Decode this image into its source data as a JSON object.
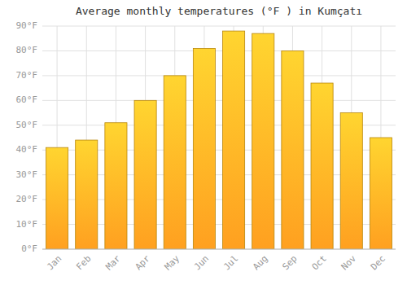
{
  "chart_data": {
    "type": "bar",
    "title": "Average monthly temperatures (°F ) in Kumçatı",
    "categories": [
      "Jan",
      "Feb",
      "Mar",
      "Apr",
      "May",
      "Jun",
      "Jul",
      "Aug",
      "Sep",
      "Oct",
      "Nov",
      "Dec"
    ],
    "values": [
      41,
      44,
      51,
      60,
      70,
      81,
      88,
      87,
      80,
      67,
      55,
      45
    ],
    "color": "#FFA020",
    "ylim": [
      0,
      90
    ],
    "yticks": [
      {
        "value": 0,
        "label": "0°F"
      },
      {
        "value": 10,
        "label": "10°F"
      },
      {
        "value": 20,
        "label": "20°F"
      },
      {
        "value": 30,
        "label": "30°F"
      },
      {
        "value": 40,
        "label": "40°F"
      },
      {
        "value": 50,
        "label": "50°F"
      },
      {
        "value": 60,
        "label": "60°F"
      },
      {
        "value": 70,
        "label": "70°F"
      },
      {
        "value": 80,
        "label": "80°F"
      },
      {
        "value": 90,
        "label": "90°F"
      }
    ],
    "grid": true
  }
}
